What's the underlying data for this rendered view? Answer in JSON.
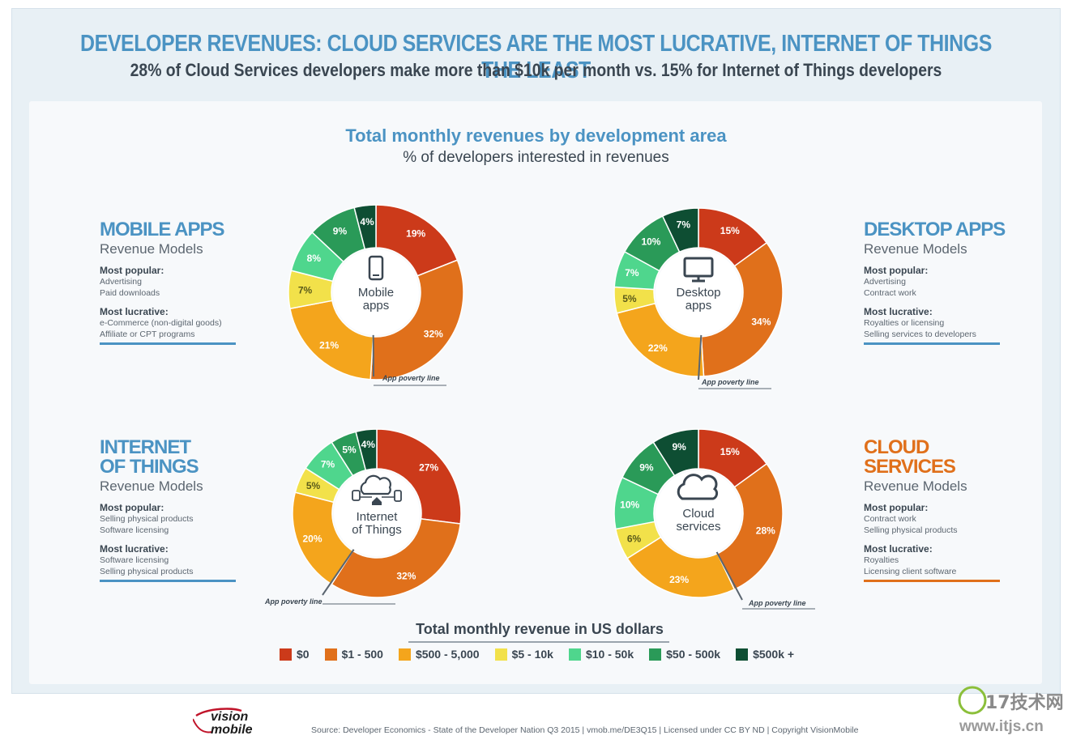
{
  "header": {
    "title": "DEVELOPER REVENUES: CLOUD SERVICES ARE THE MOST LUCRATIVE, INTERNET OF  THINGS THE LEAST",
    "subtitle": "28% of Cloud Services developers make more than $10k per month vs. 15% for Internet of  Things developers"
  },
  "chart_heading": {
    "title": "Total monthly revenues by development area",
    "subtitle": "% of developers interested in revenues"
  },
  "blocks": {
    "mobile": {
      "heading": "MOBILE APPS",
      "revenue_models": "Revenue Models",
      "popular_label": "Most popular:",
      "popular": [
        "Advertising",
        "Paid downloads"
      ],
      "lucrative_label": "Most lucrative:",
      "lucrative": [
        "e-Commerce (non-digital goods)",
        "Affiliate or CPT programs"
      ]
    },
    "desktop": {
      "heading": "DESKTOP APPS",
      "revenue_models": "Revenue Models",
      "popular_label": "Most popular:",
      "popular": [
        "Advertising",
        "Contract work"
      ],
      "lucrative_label": "Most lucrative:",
      "lucrative": [
        "Royalties or licensing",
        "Selling services to developers"
      ]
    },
    "iot": {
      "heading_line1": "INTERNET",
      "heading_line2": "OF THINGS",
      "revenue_models": "Revenue Models",
      "popular_label": "Most popular:",
      "popular": [
        "Selling physical products",
        "Software licensing"
      ],
      "lucrative_label": "Most lucrative:",
      "lucrative": [
        "Software licensing",
        "Selling physical products"
      ]
    },
    "cloud": {
      "heading_line1": "CLOUD",
      "heading_line2": "SERVICES",
      "revenue_models": "Revenue Models",
      "popular_label": "Most popular:",
      "popular": [
        "Contract work",
        "Selling physical products"
      ],
      "lucrative_label": "Most lucrative:",
      "lucrative": [
        "Royalties",
        "Licensing client software"
      ]
    }
  },
  "poverty_label": "App poverty line",
  "chart_data": [
    {
      "type": "pie",
      "name": "mobile",
      "center_label": [
        "Mobile",
        "apps"
      ],
      "icon": "phone-icon",
      "categories": [
        "$0",
        "$1 - 500",
        "$500 - 5,000",
        "$5 - 10k",
        "$10 - 50k",
        "$50 - 500k",
        "$500k +"
      ],
      "values": [
        19,
        32,
        21,
        7,
        8,
        9,
        4
      ]
    },
    {
      "type": "pie",
      "name": "desktop",
      "center_label": [
        "Desktop",
        "apps"
      ],
      "icon": "monitor-icon",
      "categories": [
        "$0",
        "$1 - 500",
        "$500 - 5,000",
        "$5 - 10k",
        "$10 - 50k",
        "$50 - 500k",
        "$500k +"
      ],
      "values": [
        15,
        34,
        22,
        5,
        7,
        10,
        7
      ]
    },
    {
      "type": "pie",
      "name": "iot",
      "center_label": [
        "Internet",
        "of Things"
      ],
      "icon": "iot-cloud-icon",
      "categories": [
        "$0",
        "$1 - 500",
        "$500 - 5,000",
        "$5 - 10k",
        "$10 - 50k",
        "$50 - 500k",
        "$500k +"
      ],
      "values": [
        27,
        32,
        20,
        5,
        7,
        5,
        4
      ]
    },
    {
      "type": "pie",
      "name": "cloud",
      "center_label": [
        "Cloud",
        "services"
      ],
      "icon": "cloud-icon",
      "categories": [
        "$0",
        "$1 - 500",
        "$500 - 5,000",
        "$5 - 10k",
        "$10 - 50k",
        "$50 - 500k",
        "$500k +"
      ],
      "values": [
        15,
        28,
        23,
        6,
        10,
        9,
        9
      ]
    }
  ],
  "legend": {
    "title": "Total monthly revenue in US dollars",
    "items": [
      {
        "label": "$0",
        "color": "#cc3a1a"
      },
      {
        "label": "$1 - 500",
        "color": "#e0701b"
      },
      {
        "label": "$500 - 5,000",
        "color": "#f4a51c"
      },
      {
        "label": "$5 - 10k",
        "color": "#f2e14a"
      },
      {
        "label": "$10 - 50k",
        "color": "#4fd68d"
      },
      {
        "label": "$50 - 500k",
        "color": "#2a9a58"
      },
      {
        "label": "$500k +",
        "color": "#0e4e33"
      }
    ]
  },
  "footer": {
    "logo_line1": "vision",
    "logo_line2": "mobile",
    "source": "Source: Developer Economics - State of the Developer Nation Q3 2015 | vmob.me/DE3Q15 | Licensed under CC BY ND | Copyright VisionMobile",
    "watermark_brand": "17技术网",
    "watermark_url": "www.itjs.cn"
  }
}
